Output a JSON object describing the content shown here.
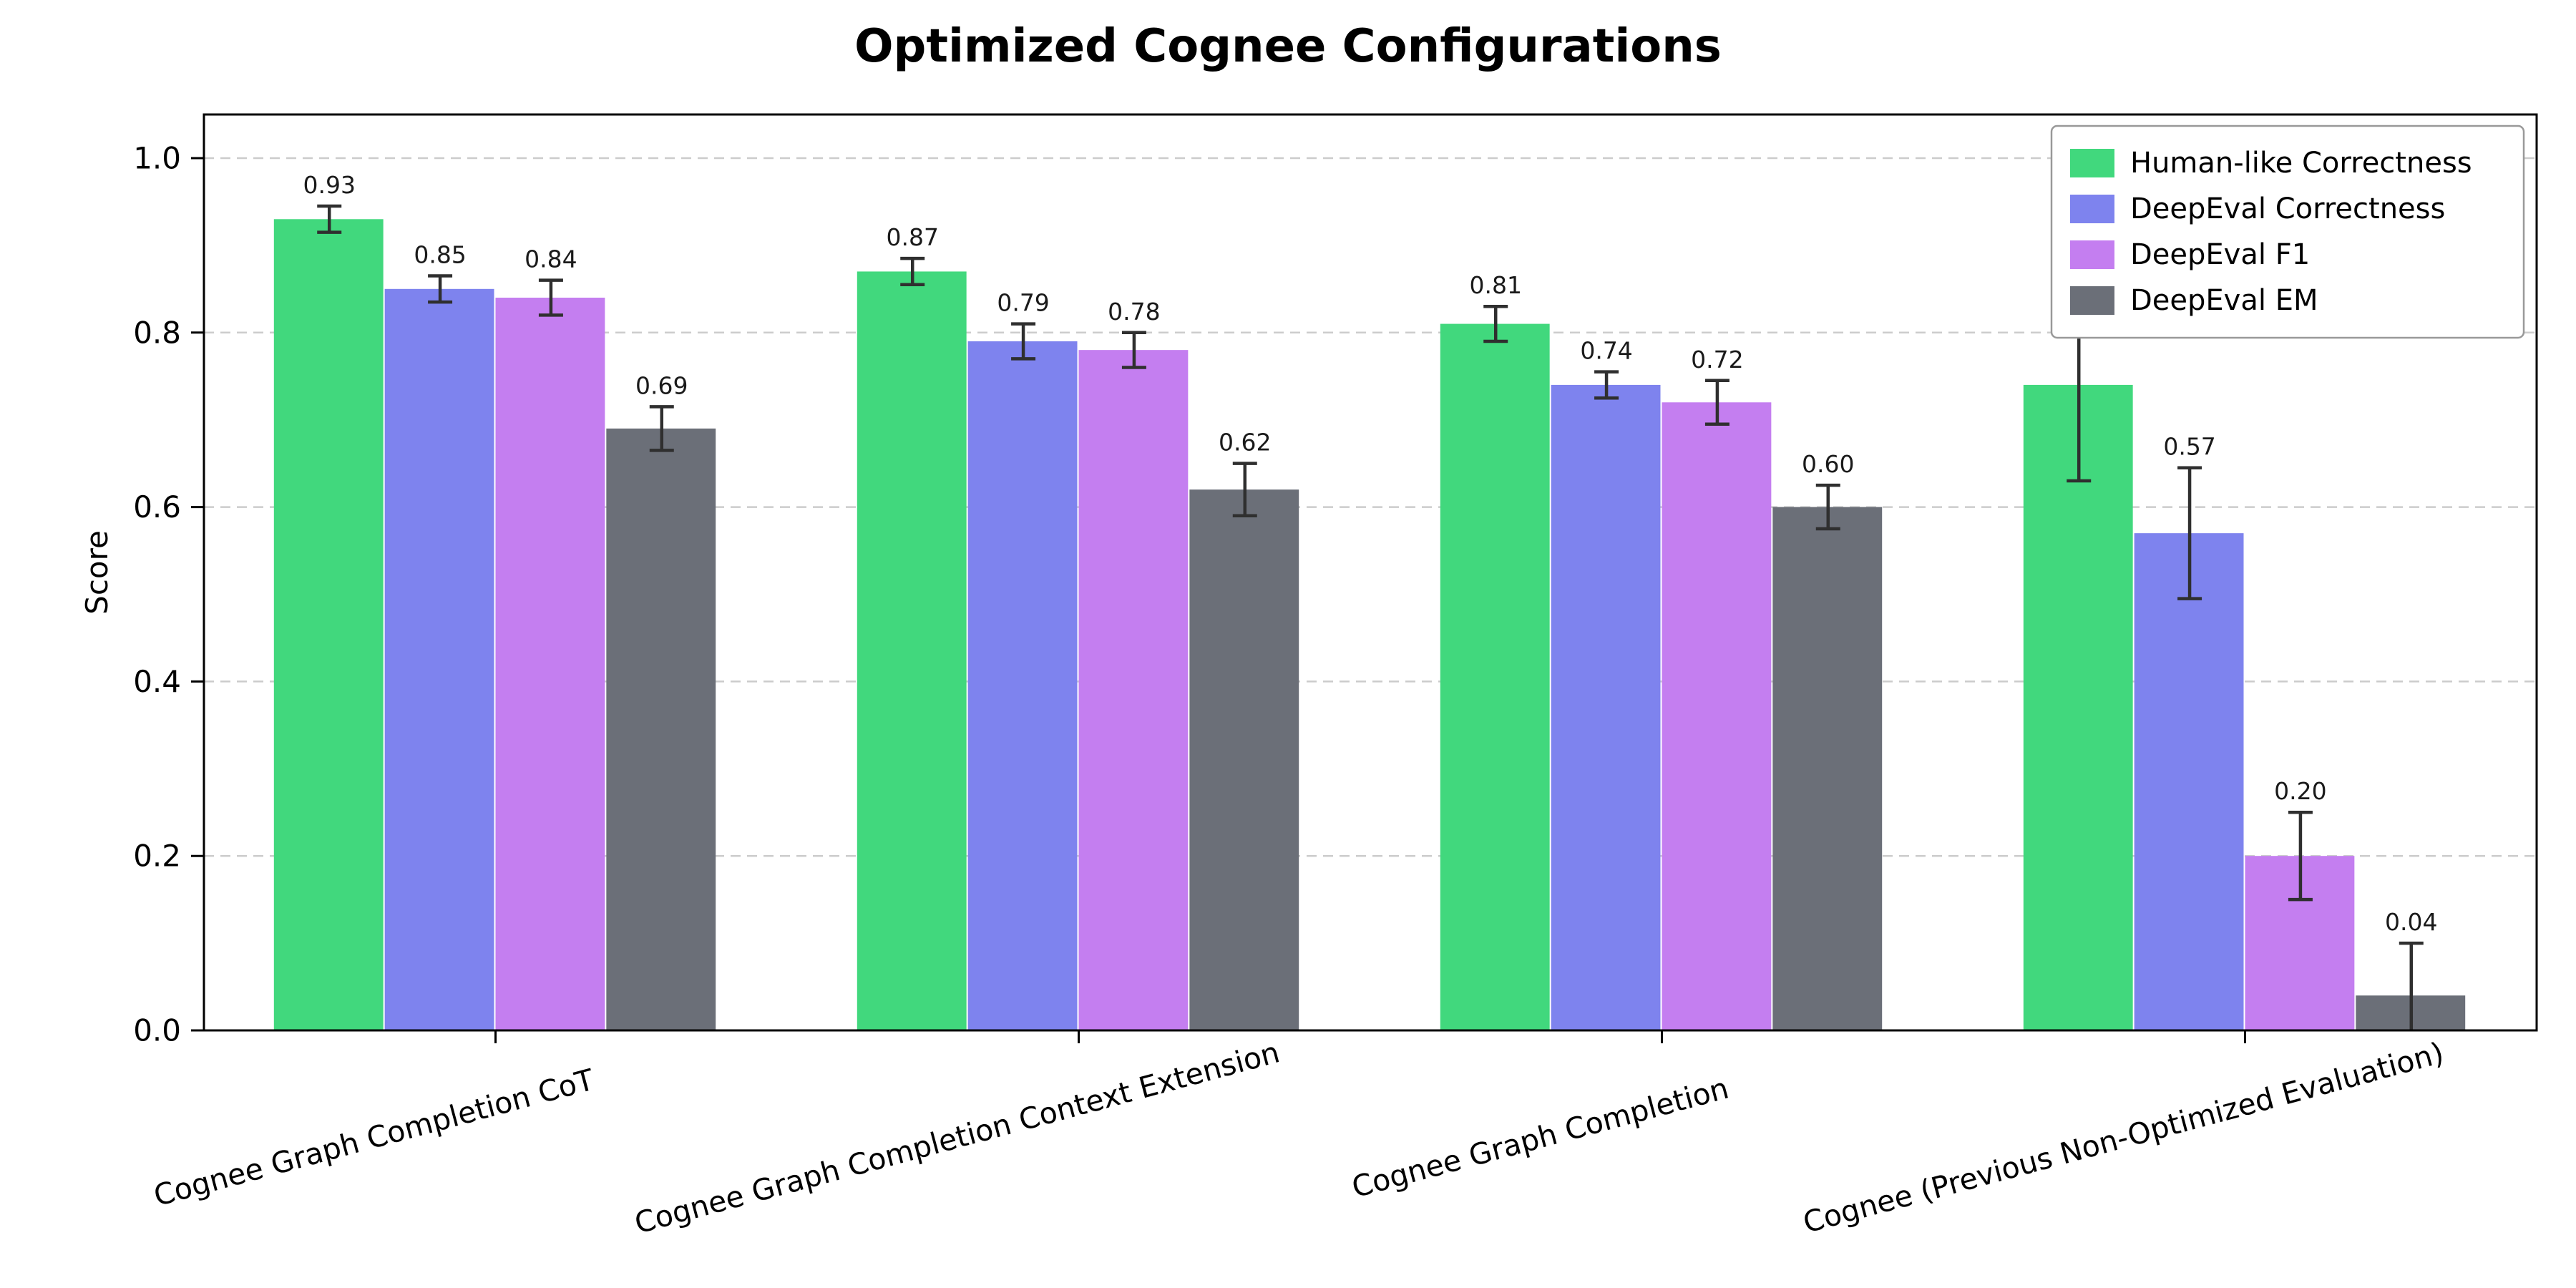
{
  "chart_data": {
    "type": "bar",
    "title": "Optimized Cognee Configurations",
    "ylabel": "Score",
    "xlabel": "",
    "categories": [
      "Cognee Graph Completion CoT",
      "Cognee Graph Completion Context Extension",
      "Cognee Graph Completion",
      "Cognee (Previous Non-Optimized Evaluation)"
    ],
    "series": [
      {
        "name": "Human-like Correctness",
        "color": "#41d87d",
        "values": [
          0.93,
          0.87,
          0.81,
          0.74
        ],
        "errors": [
          0.015,
          0.015,
          0.02,
          0.11
        ],
        "labels": [
          "0.93",
          "0.87",
          "0.81",
          "0.74"
        ]
      },
      {
        "name": "DeepEval Correctness",
        "color": "#7e83ee",
        "values": [
          0.85,
          0.79,
          0.74,
          0.57
        ],
        "errors": [
          0.015,
          0.02,
          0.015,
          0.075
        ],
        "labels": [
          "0.85",
          "0.79",
          "0.74",
          "0.57"
        ]
      },
      {
        "name": "DeepEval F1",
        "color": "#c47ef0",
        "values": [
          0.84,
          0.78,
          0.72,
          0.2
        ],
        "errors": [
          0.02,
          0.02,
          0.025,
          0.05
        ],
        "labels": [
          "0.84",
          "0.78",
          "0.72",
          "0.20"
        ]
      },
      {
        "name": "DeepEval EM",
        "color": "#6b6f78",
        "values": [
          0.69,
          0.62,
          0.6,
          0.04
        ],
        "errors": [
          0.025,
          0.03,
          0.025,
          0.06
        ],
        "labels": [
          "0.69",
          "0.62",
          "0.60",
          "0.04"
        ]
      }
    ],
    "yticks": [
      "0.0",
      "0.2",
      "0.4",
      "0.6",
      "0.8",
      "1.0"
    ],
    "ylim": [
      0,
      1.05
    ],
    "grid": "horizontal-dashed",
    "legend_position": "upper-right",
    "colors": {
      "background": "#ffffff",
      "frame": "#000000",
      "gridline": "#cccccc",
      "error_bar": "#2f2f2f",
      "text": "#000000",
      "value_label": "#1a1a1a",
      "legend_border": "#999999"
    }
  }
}
